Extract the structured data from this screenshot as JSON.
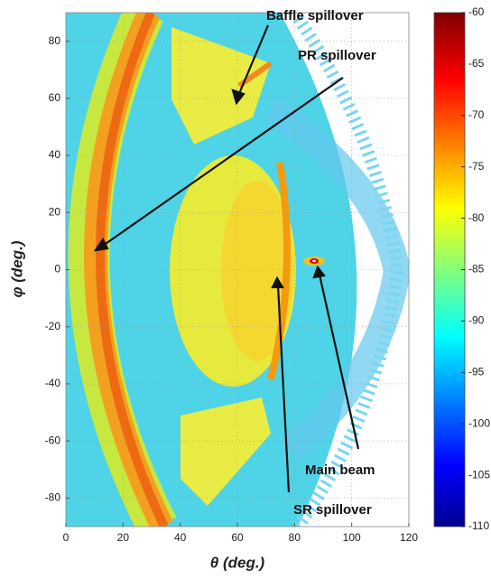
{
  "chart_data": {
    "type": "heatmap",
    "xlabel": "θ (deg.)",
    "ylabel": "φ (deg.)",
    "xlim": [
      0,
      120
    ],
    "xticks": [
      0,
      20,
      40,
      60,
      80,
      100,
      120
    ],
    "ylim": [
      -90,
      90
    ],
    "yticks": [
      -80,
      -60,
      -40,
      -20,
      0,
      20,
      40,
      60,
      80
    ],
    "grid": true,
    "colormap": "jet",
    "clim": [
      -110,
      -60
    ],
    "cticks": [
      -110,
      -105,
      -100,
      -95,
      -90,
      -85,
      -80,
      -75,
      -70,
      -65,
      -60
    ],
    "annotations": [
      "Baffle spillover",
      "PR spillover",
      "Main beam",
      "SR spillover"
    ]
  }
}
